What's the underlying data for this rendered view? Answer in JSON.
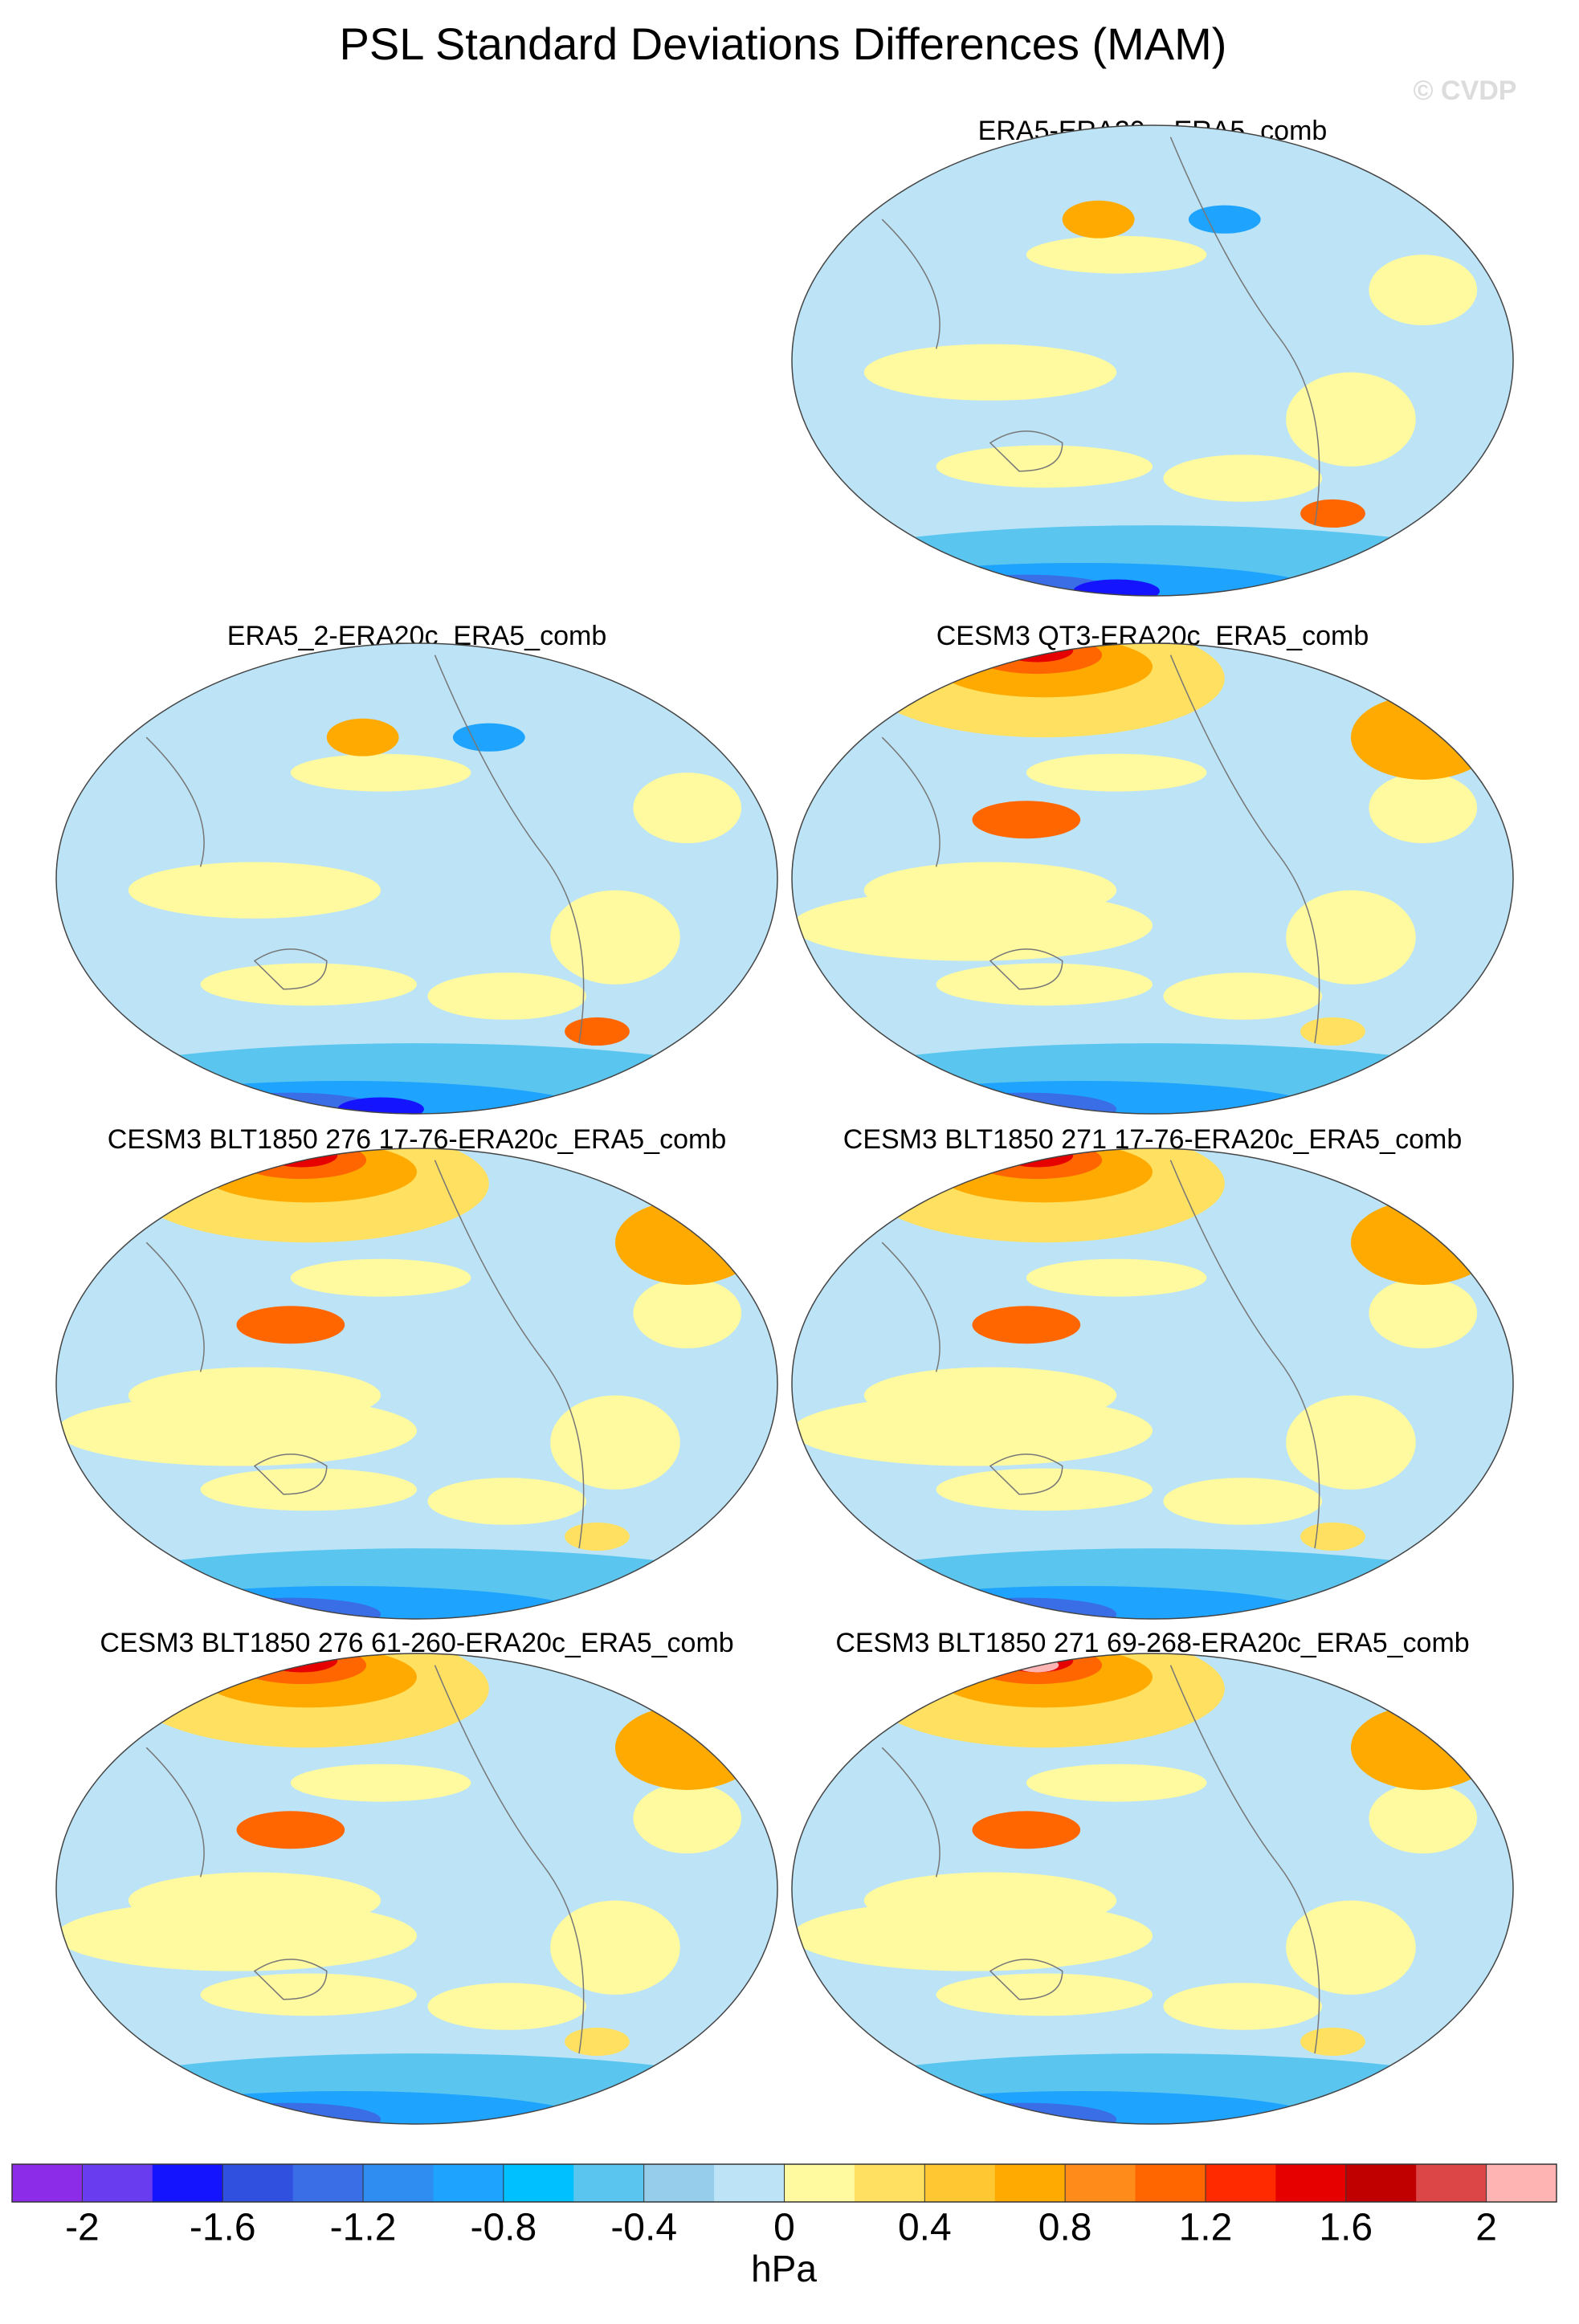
{
  "title": "PSL Standard Deviations Differences (MAM)",
  "watermark": "© CVDP",
  "panels": [
    {
      "title": "ERA5-ERA20c_ERA5_comb"
    },
    {
      "title": "ERA5_2-ERA20c_ERA5_comb"
    },
    {
      "title": "CESM3 QT3-ERA20c_ERA5_comb"
    },
    {
      "title": "CESM3 BLT1850 276 17-76-ERA20c_ERA5_comb"
    },
    {
      "title": "CESM3 BLT1850 271 17-76-ERA20c_ERA5_comb"
    },
    {
      "title": "CESM3 BLT1850 276 61-260-ERA20c_ERA5_comb"
    },
    {
      "title": "CESM3 BLT1850 271 69-268-ERA20c_ERA5_comb"
    }
  ],
  "colorbar": {
    "lim": [
      -2.2,
      2.2
    ],
    "ticks": [
      -2,
      -1.6,
      -1.2,
      -0.8,
      -0.4,
      0,
      0.4,
      0.8,
      1.2,
      1.6,
      2
    ],
    "colors": [
      "#8c2be8",
      "#6a3cf0",
      "#1414ff",
      "#3050e0",
      "#3a6ee6",
      "#2f8cf0",
      "#1ea4ff",
      "#00c0ff",
      "#5ac6f0",
      "#96cdeb",
      "#bce4f6",
      "#fff9a0",
      "#ffe060",
      "#ffc832",
      "#ffaa00",
      "#ff8c1a",
      "#ff6600",
      "#ff2a00",
      "#e60000",
      "#c00000",
      "#dc4646",
      "#ffb4b4"
    ],
    "label": "hPa"
  }
}
